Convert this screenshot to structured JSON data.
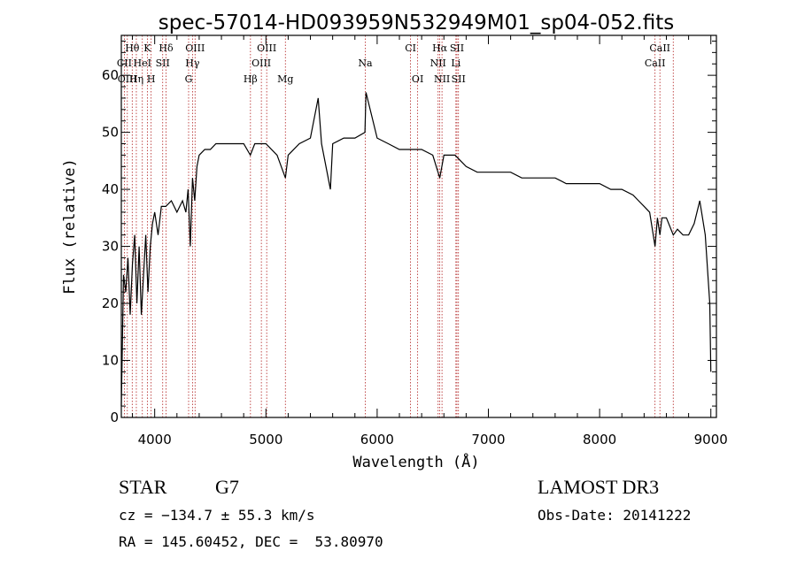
{
  "chart_data": {
    "type": "line",
    "title": "spec-57014-HD093959N532949M01_sp04-052.fits",
    "xlabel": "Wavelength (Å)",
    "ylabel": "Flux (relative)",
    "xlim": [
      3700,
      9050
    ],
    "ylim": [
      0,
      67
    ],
    "xticks": [
      "4000",
      "5000",
      "6000",
      "7000",
      "8000",
      "9000"
    ],
    "yticks": [
      "0",
      "10",
      "20",
      "30",
      "40",
      "50",
      "60"
    ],
    "grid": false,
    "series": [
      {
        "color": "#000000",
        "x": [
          3700,
          3720,
          3740,
          3760,
          3780,
          3800,
          3820,
          3840,
          3860,
          3880,
          3900,
          3920,
          3940,
          3960,
          3980,
          4000,
          4030,
          4060,
          4100,
          4150,
          4200,
          4250,
          4280,
          4300,
          4320,
          4340,
          4360,
          4380,
          4400,
          4450,
          4500,
          4550,
          4600,
          4700,
          4800,
          4860,
          4900,
          5000,
          5100,
          5175,
          5200,
          5300,
          5400,
          5470,
          5500,
          5580,
          5600,
          5700,
          5800,
          5890,
          5900,
          6000,
          6100,
          6200,
          6300,
          6400,
          6500,
          6563,
          6600,
          6700,
          6800,
          6900,
          7000,
          7100,
          7200,
          7300,
          7400,
          7500,
          7600,
          7700,
          7800,
          7900,
          8000,
          8100,
          8200,
          8300,
          8350,
          8400,
          8450,
          8498,
          8520,
          8542,
          8560,
          8600,
          8662,
          8700,
          8750,
          8800,
          8850,
          8900,
          8950,
          8990,
          9000
        ],
        "y": [
          2,
          25,
          22,
          28,
          18,
          27,
          32,
          20,
          30,
          18,
          25,
          32,
          22,
          30,
          34,
          36,
          32,
          37,
          37,
          38,
          36,
          38,
          36,
          40,
          30,
          42,
          38,
          44,
          46,
          47,
          47,
          48,
          48,
          48,
          48,
          46,
          48,
          48,
          46,
          42,
          46,
          48,
          49,
          56,
          48,
          40,
          48,
          49,
          49,
          50,
          57,
          49,
          48,
          47,
          47,
          47,
          46,
          42,
          46,
          46,
          44,
          43,
          43,
          43,
          43,
          42,
          42,
          42,
          42,
          41,
          41,
          41,
          41,
          40,
          40,
          39,
          38,
          37,
          36,
          30,
          35,
          32,
          35,
          35,
          32,
          33,
          32,
          32,
          34,
          38,
          32,
          20,
          8
        ]
      }
    ],
    "line_markers": [
      {
        "label": "Hθ",
        "x": 3798
      },
      {
        "label": "K",
        "x": 3934
      },
      {
        "label": "Hδ",
        "x": 4102
      },
      {
        "label": "OIII",
        "x": 4363
      },
      {
        "label": "OIII",
        "x": 5007
      },
      {
        "label": "CI",
        "x": 6300
      },
      {
        "label": "Hα",
        "x": 6563
      },
      {
        "label": "SII",
        "x": 6717
      },
      {
        "label": "CaII",
        "x": 8542
      },
      {
        "label": "CII",
        "x": 3727
      },
      {
        "label": "HeI",
        "x": 3889
      },
      {
        "label": "SII",
        "x": 4072
      },
      {
        "label": "Hγ",
        "x": 4340
      },
      {
        "label": "OIII",
        "x": 4959
      },
      {
        "label": "Na",
        "x": 5893
      },
      {
        "label": "NII",
        "x": 6548
      },
      {
        "label": "Li",
        "x": 6708
      },
      {
        "label": "CaII",
        "x": 8498
      },
      {
        "label": "OIII",
        "x": 3754
      },
      {
        "label": "Hη",
        "x": 3835
      },
      {
        "label": "H",
        "x": 3968
      },
      {
        "label": "G",
        "x": 4305
      },
      {
        "label": "Hβ",
        "x": 4861
      },
      {
        "label": "Mg",
        "x": 5175
      },
      {
        "label": "OI",
        "x": 6364
      },
      {
        "label": "NII",
        "x": 6583
      },
      {
        "label": "SII",
        "x": 6731
      },
      {
        "label": "CaII",
        "x": 8662
      }
    ]
  },
  "info": {
    "object_class": "STAR",
    "subclass": "G7",
    "survey": "LAMOST DR3",
    "redshift": "cz = −134.7 ± 55.3 km/s",
    "obs_date": "Obs-Date: 20141222",
    "coordinates": "RA = 145.60452, DEC =  53.80970"
  },
  "colors": {
    "spectrum": "#000000",
    "line_marker": "#b22222"
  }
}
